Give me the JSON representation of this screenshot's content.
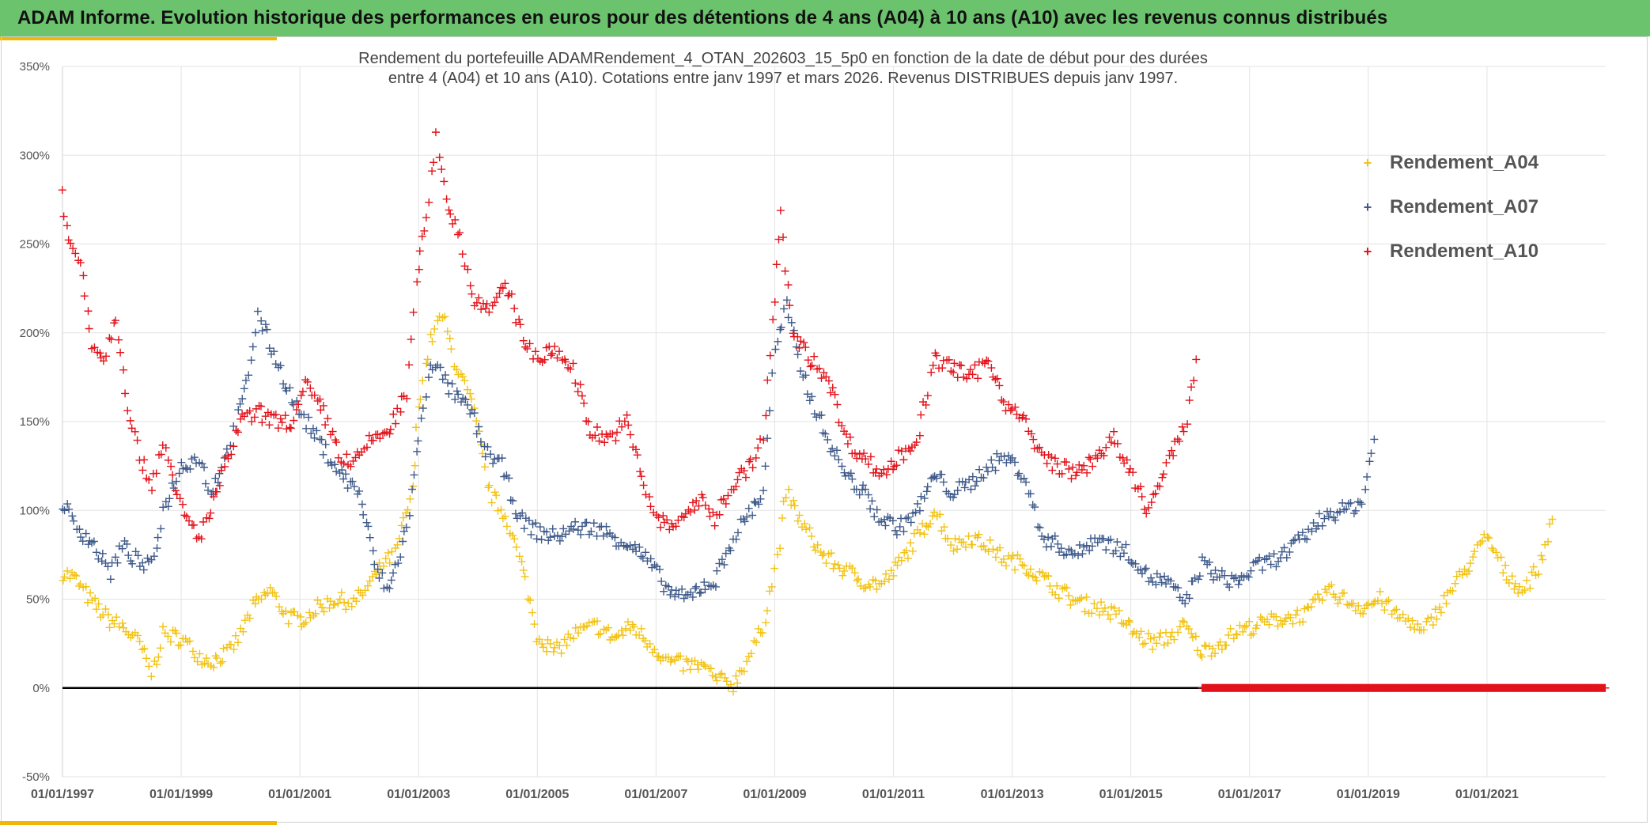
{
  "header": {
    "title": "ADAM Informe. Evolution historique des performances en euros pour des détentions de 4 ans (A04) à 10 ans (A10) avec les revenus connus distribués"
  },
  "colors": {
    "banner": "#6cc36e",
    "accent": "#f2b705",
    "A04": "#f2c314",
    "A07": "#3f5a8a",
    "A10": "#e3131b",
    "zero_line": "#000000",
    "grid": "#e3e3e3"
  },
  "chart_data": {
    "type": "scatter",
    "title_line1": "Rendement du portefeuille ADAMRendement_4_OTAN_202603_15_5p0  en fonction de la date de début pour des durées",
    "title_line2": "entre 4 (A04) et 10 ans (A10). Cotations entre janv 1997 et mars 2026. Revenus DISTRIBUES depuis janv 1997.",
    "xlabel": "",
    "ylabel": "",
    "marker": "+",
    "x_range": [
      1997.0,
      2023.0
    ],
    "x_tick_labels": [
      "01/01/1997",
      "01/01/1999",
      "01/01/2001",
      "01/01/2003",
      "01/01/2005",
      "01/01/2007",
      "01/01/2009",
      "01/01/2011",
      "01/01/2013",
      "01/01/2015",
      "01/01/2017",
      "01/01/2019",
      "01/01/2021"
    ],
    "x_tick_years": [
      1997,
      1999,
      2001,
      2003,
      2005,
      2007,
      2009,
      2011,
      2013,
      2015,
      2017,
      2019,
      2021
    ],
    "ylim": [
      -50,
      350
    ],
    "y_ticks": [
      -50,
      0,
      50,
      100,
      150,
      200,
      250,
      300,
      350
    ],
    "y_tick_labels": [
      "-50%",
      "0%",
      "50%",
      "100%",
      "150%",
      "200%",
      "250%",
      "300%",
      "350%"
    ],
    "zero_line": true,
    "grid": true,
    "legend_position": "right",
    "series": [
      {
        "name": "Rendement_A04",
        "key": "A04",
        "x": [
          1997.0,
          1997.2,
          1997.5,
          1997.8,
          1998.0,
          1998.3,
          1998.5,
          1998.7,
          1999.0,
          1999.3,
          1999.5,
          1999.8,
          2000.0,
          2000.2,
          2000.5,
          2000.8,
          2001.0,
          2001.3,
          2001.6,
          2001.9,
          2002.1,
          2002.4,
          2002.6,
          2002.9,
          2003.0,
          2003.2,
          2003.4,
          2003.6,
          2003.9,
          2004.2,
          2004.5,
          2004.8,
          2005.0,
          2005.3,
          2005.6,
          2006.0,
          2006.3,
          2006.6,
          2006.9,
          2007.2,
          2007.5,
          2007.8,
          2008.0,
          2008.3,
          2008.6,
          2008.8,
          2009.0,
          2009.2,
          2009.5,
          2009.8,
          2010.1,
          2010.5,
          2010.8,
          2011.1,
          2011.4,
          2011.7,
          2012.0,
          2012.3,
          2012.6,
          2012.9,
          2013.2,
          2013.5,
          2013.8,
          2014.1,
          2014.5,
          2014.8,
          2015.1,
          2015.4,
          2015.7,
          2015.9,
          2016.2,
          2016.5,
          2016.8,
          2017.1,
          2017.4,
          2017.7,
          2018.0,
          2018.3,
          2018.6,
          2018.9,
          2019.2,
          2019.5,
          2019.7,
          2019.9,
          2020.5,
          2020.8,
          2021.0,
          2021.3,
          2021.6,
          2021.9,
          2022.1
        ],
        "y": [
          65,
          62,
          48,
          38,
          35,
          25,
          8,
          30,
          28,
          18,
          15,
          20,
          30,
          45,
          55,
          40,
          38,
          45,
          50,
          48,
          55,
          70,
          75,
          110,
          160,
          195,
          210,
          185,
          160,
          110,
          95,
          60,
          30,
          20,
          30,
          35,
          28,
          35,
          25,
          15,
          13,
          12,
          5,
          2,
          20,
          35,
          65,
          110,
          90,
          75,
          68,
          60,
          58,
          70,
          85,
          100,
          80,
          85,
          80,
          72,
          70,
          62,
          55,
          48,
          45,
          40,
          30,
          25,
          30,
          35,
          20,
          25,
          32,
          35,
          38,
          40,
          42,
          55,
          50,
          45,
          50,
          40,
          38,
          30,
          60,
          75,
          85,
          65,
          55,
          70,
          95
        ]
      },
      {
        "name": "Rendement_A07",
        "key": "A07",
        "x": [
          1997.0,
          1997.2,
          1997.5,
          1997.8,
          1998.0,
          1998.3,
          1998.5,
          1998.7,
          1999.0,
          1999.3,
          1999.5,
          1999.8,
          2000.1,
          2000.3,
          2000.6,
          2000.9,
          2001.1,
          2001.4,
          2001.7,
          2002.0,
          2002.3,
          2002.5,
          2002.8,
          2003.0,
          2003.2,
          2003.4,
          2003.6,
          2003.9,
          2004.1,
          2004.4,
          2004.7,
          2005.0,
          2005.3,
          2005.6,
          2006.0,
          2006.3,
          2006.6,
          2006.9,
          2007.2,
          2007.5,
          2007.8,
          2008.0,
          2008.3,
          2008.5,
          2008.8,
          2009.0,
          2009.2,
          2009.4,
          2009.6,
          2009.9,
          2010.2,
          2010.5,
          2010.8,
          2011.1,
          2011.4,
          2011.7,
          2012.0,
          2012.3,
          2012.6,
          2012.9,
          2013.2,
          2013.5,
          2013.8,
          2014.1,
          2014.4,
          2014.7,
          2015.0,
          2015.3,
          2015.6,
          2015.9,
          2016.2,
          2016.5,
          2016.8,
          2017.1,
          2017.4,
          2017.7,
          2018.0,
          2018.3,
          2018.6,
          2018.9,
          2019.1
        ],
        "y": [
          105,
          92,
          82,
          65,
          80,
          70,
          68,
          100,
          125,
          130,
          110,
          135,
          170,
          210,
          185,
          160,
          150,
          135,
          120,
          110,
          65,
          55,
          90,
          140,
          185,
          175,
          165,
          155,
          135,
          125,
          95,
          88,
          85,
          90,
          90,
          85,
          80,
          70,
          55,
          50,
          58,
          60,
          85,
          95,
          110,
          190,
          215,
          185,
          165,
          140,
          120,
          110,
          95,
          90,
          100,
          120,
          110,
          115,
          125,
          130,
          120,
          85,
          80,
          75,
          85,
          80,
          75,
          62,
          60,
          48,
          70,
          62,
          60,
          68,
          72,
          78,
          88,
          98,
          100,
          105,
          140
        ]
      },
      {
        "name": "Rendement_A10",
        "key": "A10",
        "x": [
          1997.0,
          1997.1,
          1997.3,
          1997.5,
          1997.7,
          1997.9,
          1998.1,
          1998.3,
          1998.5,
          1998.7,
          1998.9,
          1999.1,
          1999.3,
          1999.5,
          1999.8,
          2000.0,
          2000.3,
          2000.6,
          2000.9,
          2001.1,
          2001.4,
          2001.7,
          2001.9,
          2002.2,
          2002.5,
          2002.8,
          2003.0,
          2003.1,
          2003.3,
          2003.5,
          2003.7,
          2003.9,
          2004.2,
          2004.5,
          2004.8,
          2005.0,
          2005.3,
          2005.6,
          2005.9,
          2006.2,
          2006.5,
          2006.8,
          2007.0,
          2007.3,
          2007.5,
          2007.8,
          2008.0,
          2008.3,
          2008.6,
          2008.8,
          2009.0,
          2009.1,
          2009.3,
          2009.6,
          2009.9,
          2010.2,
          2010.5,
          2010.8,
          2011.1,
          2011.4,
          2011.7,
          2012.0,
          2012.3,
          2012.6,
          2012.9,
          2013.2,
          2013.5,
          2013.8,
          2014.1,
          2014.4,
          2014.7,
          2015.0,
          2015.3,
          2015.6,
          2015.9,
          2016.1
        ],
        "y": [
          280,
          250,
          240,
          195,
          185,
          210,
          160,
          130,
          115,
          140,
          110,
          95,
          85,
          100,
          130,
          150,
          155,
          150,
          150,
          170,
          155,
          130,
          125,
          140,
          145,
          165,
          240,
          255,
          310,
          270,
          255,
          220,
          215,
          225,
          195,
          185,
          190,
          180,
          145,
          140,
          150,
          115,
          95,
          90,
          100,
          105,
          95,
          115,
          125,
          140,
          220,
          265,
          200,
          185,
          175,
          140,
          130,
          120,
          130,
          140,
          185,
          180,
          175,
          185,
          160,
          150,
          130,
          125,
          120,
          130,
          140,
          120,
          100,
          125,
          145,
          185
        ]
      }
    ],
    "flat_series": {
      "name": "Rendement_A10",
      "key": "A10",
      "x_start": 2016.2,
      "x_end": 2023.0,
      "y": 0
    },
    "legend": [
      "Rendement_A04",
      "Rendement_A07",
      "Rendement_A10"
    ]
  }
}
